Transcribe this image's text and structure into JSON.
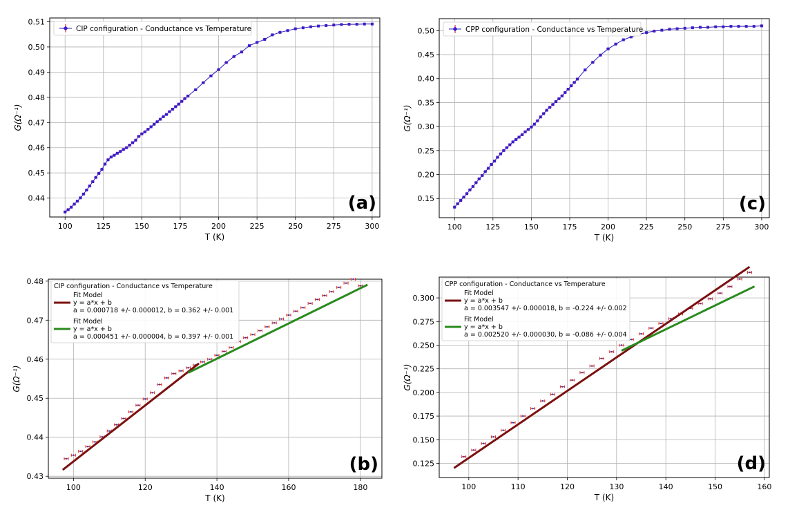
{
  "colors": {
    "cip_line": "#1f1fbf",
    "cip_marker": "#3b1ccc",
    "errorbar": "#e8281c",
    "fit1": "#7b1111",
    "fit2": "#2a8a1e",
    "data_blue": "#1f3fbf",
    "grid": "#b0b0b0"
  },
  "icons": {
    "legend_marker": "errorbar-diamond-marker-icon"
  },
  "chart_data": [
    {
      "panel": "a",
      "type": "line",
      "panel_label": "(a)",
      "xlabel": "T (K)",
      "ylabel": "G(Ω⁻¹)",
      "xlim": [
        90,
        305
      ],
      "ylim": [
        0.4325,
        0.5115
      ],
      "xticks": [
        100,
        125,
        150,
        175,
        200,
        225,
        250,
        275,
        300
      ],
      "yticks": [
        0.44,
        0.45,
        0.46,
        0.47,
        0.48,
        0.49,
        0.5,
        0.51
      ],
      "ytick_labels": [
        "0.44",
        "0.45",
        "0.46",
        "0.47",
        "0.48",
        "0.49",
        "0.50",
        "0.51"
      ],
      "grid": true,
      "legend_position": "top-left",
      "series": [
        {
          "name": "CIP configuration - Conductance vs Temperature",
          "x": [
            100,
            102,
            104,
            106,
            108,
            110,
            112,
            114,
            116,
            118,
            120,
            122,
            124,
            126,
            128,
            130,
            132,
            134,
            136,
            138,
            140,
            142,
            144,
            146,
            148,
            150,
            152,
            154,
            156,
            158,
            160,
            162,
            164,
            166,
            168,
            170,
            172,
            174,
            176,
            178,
            180,
            185,
            190,
            195,
            200,
            205,
            210,
            215,
            220,
            225,
            230,
            235,
            240,
            245,
            250,
            255,
            260,
            265,
            270,
            275,
            280,
            285,
            290,
            295,
            300
          ],
          "y": [
            0.4345,
            0.4354,
            0.4364,
            0.4376,
            0.4388,
            0.4401,
            0.4416,
            0.4432,
            0.4448,
            0.4465,
            0.4482,
            0.4498,
            0.4514,
            0.4535,
            0.4552,
            0.4563,
            0.457,
            0.4578,
            0.4585,
            0.4593,
            0.46,
            0.461,
            0.462,
            0.463,
            0.4645,
            0.4655,
            0.4663,
            0.4673,
            0.4683,
            0.4693,
            0.4703,
            0.4713,
            0.4723,
            0.4732,
            0.4743,
            0.4753,
            0.4763,
            0.4773,
            0.4784,
            0.4795,
            0.4805,
            0.483,
            0.4858,
            0.4885,
            0.491,
            0.4938,
            0.4962,
            0.498,
            0.5005,
            0.5018,
            0.503,
            0.5048,
            0.5058,
            0.5065,
            0.5072,
            0.5076,
            0.508,
            0.5083,
            0.5085,
            0.5087,
            0.5089,
            0.509,
            0.509,
            0.5091,
            0.5091
          ]
        }
      ]
    },
    {
      "panel": "c",
      "type": "line",
      "panel_label": "(c)",
      "xlabel": "T (K)",
      "ylabel": "G(Ω⁻¹)",
      "xlim": [
        90,
        305
      ],
      "ylim": [
        0.11,
        0.525
      ],
      "xticks": [
        100,
        125,
        150,
        175,
        200,
        225,
        250,
        275,
        300
      ],
      "yticks": [
        0.15,
        0.2,
        0.25,
        0.3,
        0.35,
        0.4,
        0.45,
        0.5
      ],
      "ytick_labels": [
        "0.15",
        "0.20",
        "0.25",
        "0.30",
        "0.35",
        "0.40",
        "0.45",
        "0.50"
      ],
      "grid": true,
      "legend_position": "top-left",
      "series": [
        {
          "name": "CPP configuration - Conductance vs Temperature",
          "x": [
            100,
            102,
            104,
            106,
            108,
            110,
            112,
            114,
            116,
            118,
            120,
            122,
            124,
            126,
            128,
            130,
            132,
            134,
            136,
            138,
            140,
            142,
            144,
            146,
            148,
            150,
            152,
            154,
            156,
            158,
            160,
            162,
            164,
            166,
            168,
            170,
            172,
            174,
            176,
            178,
            180,
            185,
            190,
            195,
            200,
            205,
            210,
            215,
            220,
            225,
            230,
            235,
            240,
            245,
            250,
            255,
            260,
            265,
            270,
            275,
            280,
            285,
            290,
            295,
            300
          ],
          "y": [
            0.132,
            0.139,
            0.146,
            0.153,
            0.16,
            0.168,
            0.175,
            0.183,
            0.191,
            0.198,
            0.206,
            0.213,
            0.221,
            0.228,
            0.236,
            0.243,
            0.25,
            0.256,
            0.262,
            0.268,
            0.273,
            0.278,
            0.283,
            0.289,
            0.294,
            0.299,
            0.305,
            0.312,
            0.32,
            0.327,
            0.334,
            0.34,
            0.346,
            0.352,
            0.358,
            0.364,
            0.371,
            0.378,
            0.385,
            0.392,
            0.399,
            0.418,
            0.434,
            0.449,
            0.462,
            0.472,
            0.481,
            0.487,
            0.492,
            0.496,
            0.499,
            0.501,
            0.503,
            0.504,
            0.505,
            0.506,
            0.507,
            0.507,
            0.508,
            0.508,
            0.509,
            0.509,
            0.509,
            0.509,
            0.51
          ]
        }
      ]
    },
    {
      "panel": "b",
      "type": "line",
      "panel_label": "(b)",
      "xlabel": "T (K)",
      "ylabel": "G(Ω⁻¹)",
      "xlim": [
        93,
        186
      ],
      "ylim": [
        0.4295,
        0.4805
      ],
      "xticks": [
        100,
        120,
        140,
        160,
        180
      ],
      "yticks": [
        0.43,
        0.44,
        0.45,
        0.46,
        0.47,
        0.48
      ],
      "ytick_labels": [
        "0.43",
        "0.44",
        "0.45",
        "0.46",
        "0.47",
        "0.48"
      ],
      "grid": true,
      "legend_position": "top-left",
      "legend_title": "CIP configuration - Conductance vs Temperature",
      "fits": [
        {
          "label_lines": [
            "Fit Model",
            "y = a*x + b",
            "a = 0.000718 +/- 0.000012, b = 0.362 +/- 0.001"
          ],
          "a": 0.000718,
          "b": 0.362,
          "x_range": [
            97,
            135
          ]
        },
        {
          "label_lines": [
            "Fit Model",
            "y = a*x + b",
            "a = 0.000451 +/- 0.000004, b = 0.397 +/- 0.001"
          ],
          "a": 0.000451,
          "b": 0.397,
          "x_range": [
            132,
            182
          ]
        }
      ],
      "points": {
        "x": [
          98,
          100,
          102,
          104,
          106,
          108,
          110,
          112,
          114,
          116,
          118,
          120,
          122,
          124,
          126,
          128,
          130,
          132,
          134,
          136,
          138,
          140,
          142,
          144,
          146,
          148,
          150,
          152,
          154,
          156,
          158,
          160,
          162,
          164,
          166,
          168,
          170,
          172,
          174,
          176,
          178,
          180
        ],
        "y": [
          0.4345,
          0.4354,
          0.4364,
          0.4376,
          0.4388,
          0.4401,
          0.4416,
          0.4432,
          0.4448,
          0.4465,
          0.4482,
          0.4498,
          0.4514,
          0.4535,
          0.4552,
          0.4563,
          0.457,
          0.4578,
          0.4585,
          0.4593,
          0.46,
          0.461,
          0.462,
          0.463,
          0.4645,
          0.4655,
          0.4663,
          0.4673,
          0.4683,
          0.4693,
          0.4703,
          0.4713,
          0.4723,
          0.4732,
          0.4743,
          0.4753,
          0.4763,
          0.4773,
          0.4784,
          0.4795,
          0.4805,
          0.4788
        ]
      }
    },
    {
      "panel": "d",
      "type": "line",
      "panel_label": "(d)",
      "xlabel": "T (K)",
      "ylabel": "G(Ω⁻¹)",
      "xlim": [
        94,
        161
      ],
      "ylim": [
        0.11,
        0.322
      ],
      "xticks": [
        100,
        110,
        120,
        130,
        140,
        150,
        160
      ],
      "yticks": [
        0.125,
        0.15,
        0.175,
        0.2,
        0.225,
        0.25,
        0.275,
        0.3
      ],
      "ytick_labels": [
        "0.125",
        "0.150",
        "0.175",
        "0.200",
        "0.225",
        "0.250",
        "0.275",
        "0.300"
      ],
      "grid": true,
      "legend_position": "top-left",
      "legend_title": "CPP configuration - Conductance vs Temperature",
      "fits": [
        {
          "label_lines": [
            "Fit Model",
            "y = a*x + b",
            "a = 0.003547 +/- 0.000018, b = -0.224 +/- 0.002"
          ],
          "a": 0.003547,
          "b": -0.224,
          "x_range": [
            97,
            157
          ]
        },
        {
          "label_lines": [
            "Fit Model",
            "y = a*x + b",
            "a = 0.002520 +/- 0.000030, b = -0.086 +/- 0.004"
          ],
          "a": 0.00252,
          "b": -0.086,
          "x_range": [
            131,
            158
          ]
        }
      ],
      "points": {
        "x": [
          99,
          101,
          103,
          105,
          107,
          109,
          111,
          113,
          115,
          117,
          119,
          121,
          123,
          125,
          127,
          129,
          131,
          133,
          135,
          137,
          139,
          141,
          143,
          145,
          147,
          149,
          151,
          153,
          155,
          157
        ],
        "y": [
          0.132,
          0.139,
          0.146,
          0.153,
          0.16,
          0.168,
          0.175,
          0.183,
          0.191,
          0.198,
          0.206,
          0.213,
          0.221,
          0.228,
          0.236,
          0.243,
          0.25,
          0.256,
          0.262,
          0.268,
          0.273,
          0.278,
          0.283,
          0.289,
          0.294,
          0.299,
          0.305,
          0.312,
          0.32,
          0.327
        ]
      }
    }
  ]
}
